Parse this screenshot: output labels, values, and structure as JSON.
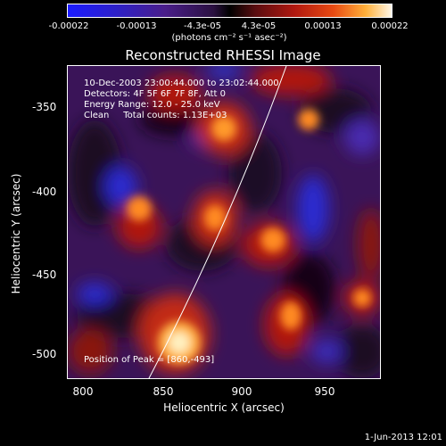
{
  "colorbar": {
    "ticks": [
      "-0.00022",
      "-0.00013",
      "-4.3e-05",
      "4.3e-05",
      "0.00013",
      "0.00022"
    ],
    "unit_label": "(photons cm⁻² s⁻¹ asec⁻²)"
  },
  "title": "Reconstructed RHESSI Image",
  "info": {
    "line1": "10-Dec-2003 23:00:44.000 to 23:02:44.000",
    "line2": "Detectors: 4F 5F 6F 7F 8F, Att 0",
    "line3": "Energy Range: 12.0 - 25.0 keV",
    "line4": "Clean     Total counts: 1.13E+03",
    "peak": "Position of Peak = [860,-493]"
  },
  "axes": {
    "xlabel": "Heliocentric X (arcsec)",
    "ylabel": "Heliocentric Y (arcsec)",
    "xticks": [
      "800",
      "850",
      "900",
      "950"
    ],
    "yticks": [
      "-350",
      "-400",
      "-450",
      "-500"
    ],
    "xlim": [
      790,
      980
    ],
    "ylim": [
      -515,
      -325
    ]
  },
  "timestamp": "1-Jun-2013 12:01"
}
